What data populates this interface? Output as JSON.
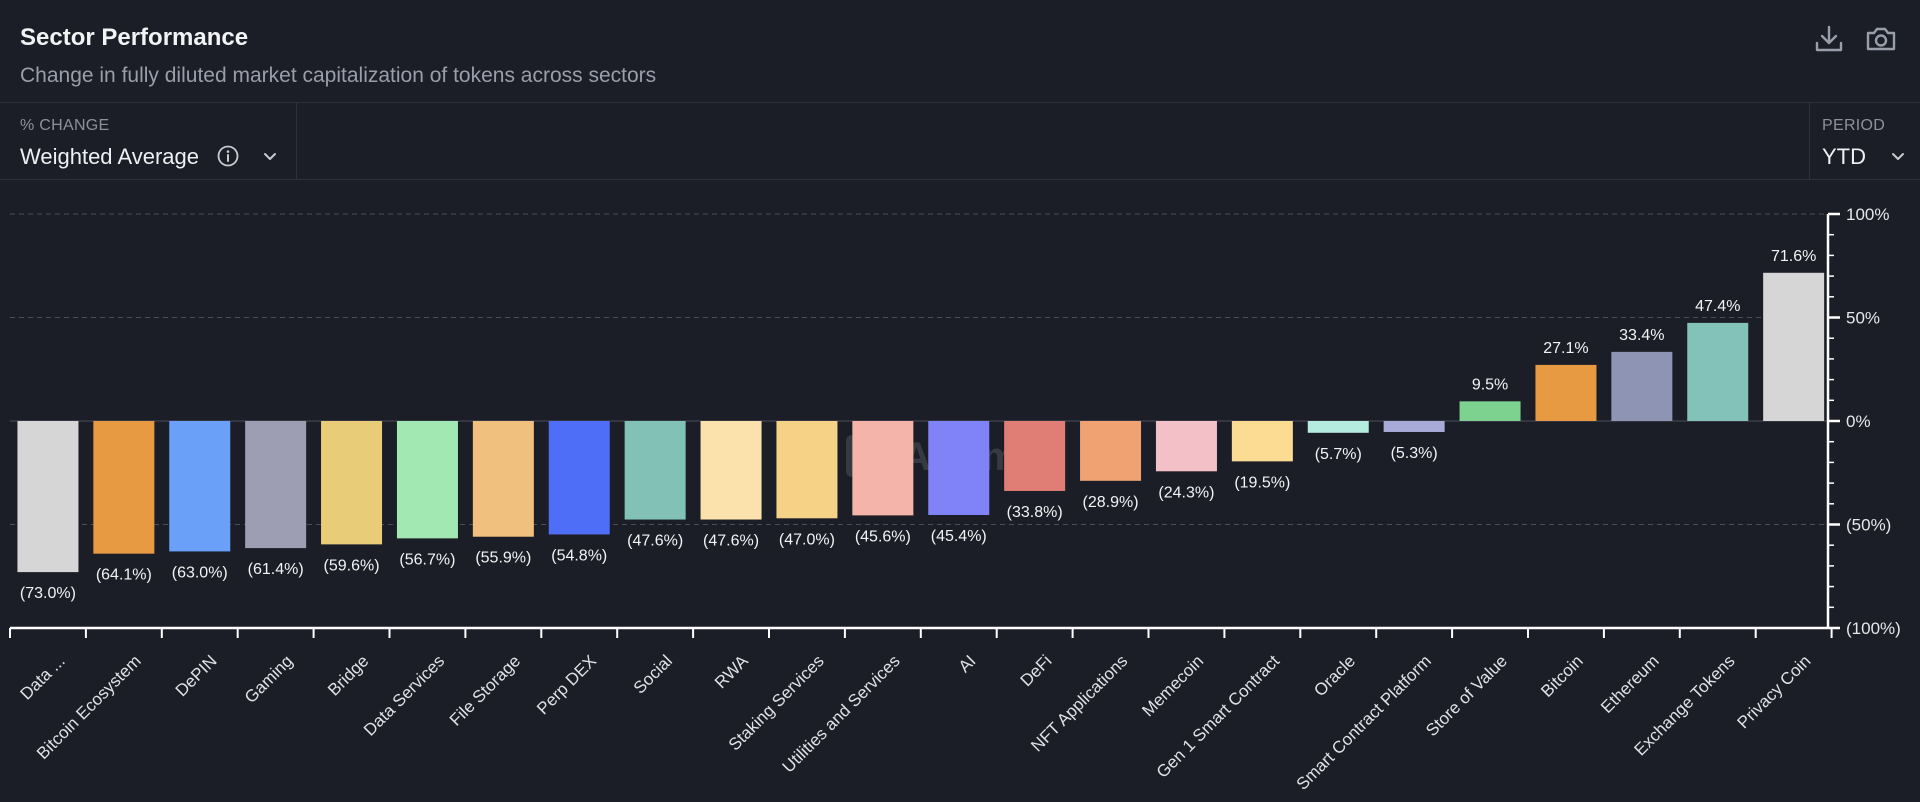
{
  "header": {
    "title": "Sector Performance",
    "subtitle": "Change in fully diluted market capitalization of tokens across sectors",
    "download_icon": "download-icon",
    "camera_icon": "camera-icon"
  },
  "controls": {
    "metric_label": "% CHANGE",
    "metric_value": "Weighted Average",
    "period_label": "PERIOD",
    "period_value": "YTD"
  },
  "watermark": "Artemis",
  "colors": {
    "background": "#1c1e27",
    "grid": "#4a4d5a",
    "axis": "#ffffff"
  },
  "chart_data": {
    "type": "bar",
    "categories": [
      "Data ...",
      "Bitcoin Ecosystem",
      "DePIN",
      "Gaming",
      "Bridge",
      "Data Services",
      "File Storage",
      "Perp DEX",
      "Social",
      "RWA",
      "Staking Services",
      "Utilities and Services",
      "AI",
      "DeFi",
      "NFT Applications",
      "Memecoin",
      "Gen 1 Smart Contract",
      "Oracle",
      "Smart Contract Platform",
      "Store of Value",
      "Bitcoin",
      "Ethereum",
      "Exchange Tokens",
      "Privacy Coin"
    ],
    "values": [
      -73.0,
      -64.1,
      -63.0,
      -61.4,
      -59.6,
      -56.7,
      -55.9,
      -54.8,
      -47.6,
      -47.6,
      -47.0,
      -45.6,
      -45.4,
      -33.8,
      -28.9,
      -24.3,
      -19.5,
      -5.7,
      -5.3,
      9.5,
      27.1,
      33.4,
      47.4,
      71.6
    ],
    "data_labels": [
      "(73.0%)",
      "(64.1%)",
      "(63.0%)",
      "(61.4%)",
      "(59.6%)",
      "(56.7%)",
      "(55.9%)",
      "(54.8%)",
      "(47.6%)",
      "(47.6%)",
      "(47.0%)",
      "(45.6%)",
      "(45.4%)",
      "(33.8%)",
      "(28.9%)",
      "(24.3%)",
      "(19.5%)",
      "(5.7%)",
      "(5.3%)",
      "9.5%",
      "27.1%",
      "33.4%",
      "47.4%",
      "71.6%"
    ],
    "colors": [
      "#d6d6d6",
      "#e89a42",
      "#6aa0f8",
      "#9d9eb4",
      "#e8cc78",
      "#a2e8b2",
      "#f0c07e",
      "#4f6ef8",
      "#82c2b6",
      "#fbe2ac",
      "#f6d286",
      "#f4b4aa",
      "#8082f8",
      "#e07e76",
      "#f0a272",
      "#f4c0c8",
      "#fbdc92",
      "#b4ece0",
      "#a8aad8",
      "#7ed290",
      "#e89a42",
      "#8e94b4",
      "#82c2b8",
      "#d6d6d6"
    ],
    "y_ticks": [
      100,
      50,
      0,
      -50,
      -100
    ],
    "y_tick_labels": [
      "100%",
      "50%",
      "0%",
      "(50%)",
      "(100%)"
    ],
    "ylim": [
      -100,
      100
    ],
    "ylabel_position": "right",
    "grid": true
  }
}
